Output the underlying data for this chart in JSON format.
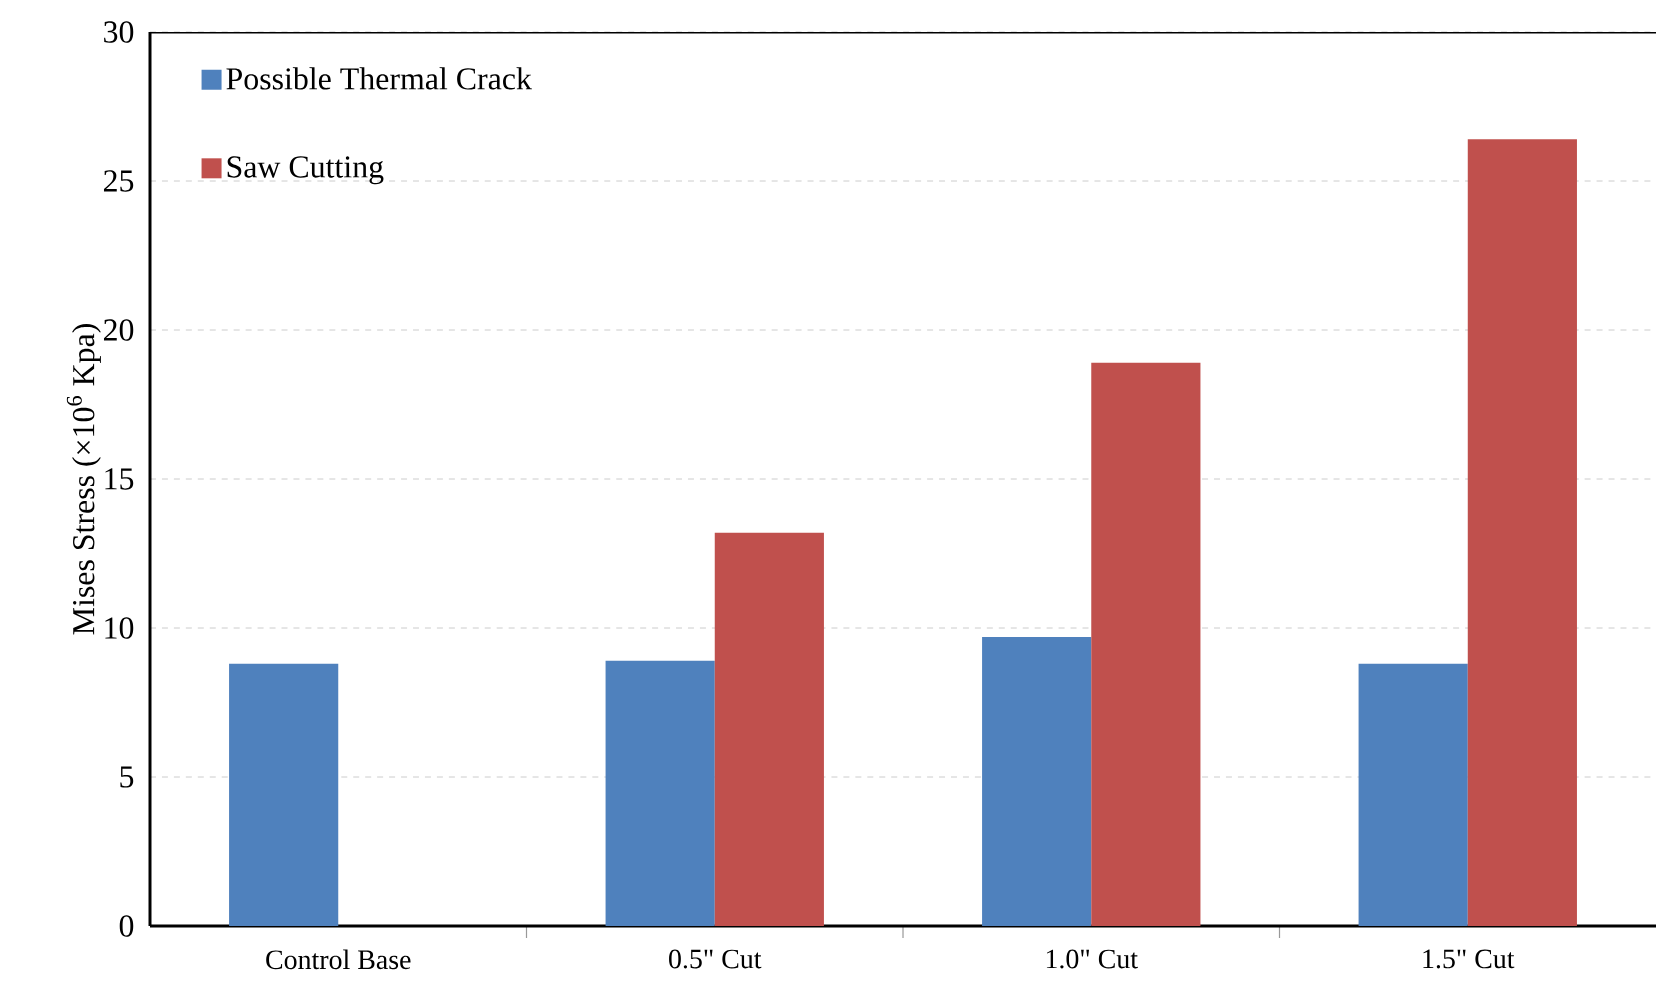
{
  "chart_data": {
    "type": "bar",
    "ylabel": "Mises Stress (×10$^{6}$ Kpa)",
    "categories": [
      "Control Base",
      "0.5\" Cut",
      "1.0\" Cut",
      "1.5\" Cut"
    ],
    "series": [
      {
        "name": "Possible Thermal Crack",
        "color": "#4f81bd",
        "values": [
          8.8,
          8.9,
          9.7,
          8.8
        ]
      },
      {
        "name": "Saw Cutting",
        "color": "#c0504d",
        "values": [
          null,
          13.2,
          18.9,
          26.4
        ]
      }
    ],
    "ylim": [
      0,
      30
    ],
    "yticks": [
      0,
      5,
      10,
      15,
      20,
      25,
      30
    ],
    "grid": "y",
    "legend": "top left"
  }
}
